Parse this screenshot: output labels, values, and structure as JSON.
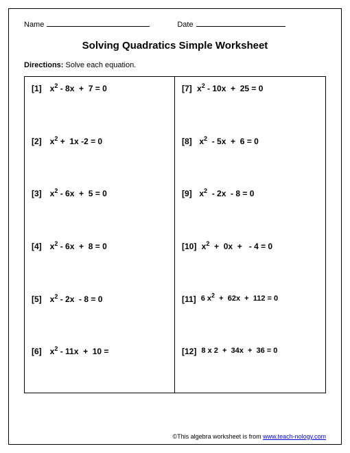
{
  "header": {
    "name_label": "Name",
    "date_label": "Date"
  },
  "title": "Solving Quadratics Simple Worksheet",
  "directions_label": "Directions:",
  "directions_text": "Solve each equation.",
  "left": [
    {
      "num": "[1]",
      "eq": "x² - 8x  +  7 = 0"
    },
    {
      "num": "[2]",
      "eq": "x² +  1x -2 = 0"
    },
    {
      "num": "[3]",
      "eq": "x² - 6x  +  5 = 0"
    },
    {
      "num": "[4]",
      "eq": "x² - 6x  +  8 = 0"
    },
    {
      "num": "[5]",
      "eq": "x² - 2x  - 8 = 0"
    },
    {
      "num": "[6]",
      "eq": "x² - 11x  +  10 ="
    }
  ],
  "right": [
    {
      "num": "[7]",
      "eq": "x² - 10x  +  25 = 0"
    },
    {
      "num": "[8]",
      "eq": "x²  - 5x  +  6 = 0"
    },
    {
      "num": "[9]",
      "eq": "x²  - 2x  - 8 = 0"
    },
    {
      "num": "[10]",
      "eq": "x²  +  0x  +   - 4 = 0"
    },
    {
      "num": "[11]",
      "eq": "6 x²  +  62x  +  112 = 0"
    },
    {
      "num": "[12]",
      "eq": "8 x 2  +  34x  +  36 = 0"
    }
  ],
  "footer": {
    "prefix": "©This algebra worksheet is from ",
    "link_text": "www.teach-nology.com"
  }
}
